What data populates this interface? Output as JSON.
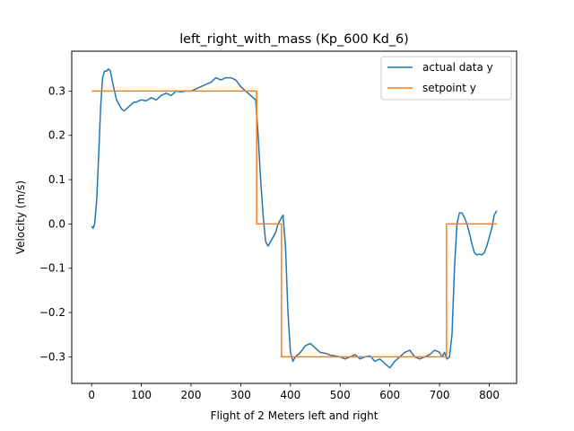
{
  "chart_data": {
    "type": "line",
    "title": "left_right_with_mass (Kp_600 Kd_6)",
    "xlabel": "Flight of 2 Meters left and right",
    "ylabel": "Velocity (m/s)",
    "xlim": [
      -40,
      855
    ],
    "ylim": [
      -0.36,
      0.39
    ],
    "xticks": [
      0,
      100,
      200,
      300,
      400,
      500,
      600,
      700,
      800
    ],
    "yticks": [
      -0.3,
      -0.2,
      -0.1,
      0.0,
      0.1,
      0.2,
      0.3
    ],
    "xtick_labels": [
      "0",
      "100",
      "200",
      "300",
      "400",
      "500",
      "600",
      "700",
      "800"
    ],
    "ytick_labels": [
      "−0.3",
      "−0.2",
      "−0.1",
      "0.0",
      "0.1",
      "0.2",
      "0.3"
    ],
    "grid": false,
    "legend_position": "upper right",
    "series": [
      {
        "name": "actual data y",
        "color": "#1f77b4",
        "x": [
          0,
          3,
          6,
          10,
          14,
          18,
          22,
          26,
          30,
          34,
          38,
          42,
          46,
          50,
          55,
          60,
          65,
          70,
          75,
          80,
          85,
          90,
          95,
          100,
          110,
          120,
          130,
          140,
          150,
          160,
          170,
          180,
          190,
          200,
          210,
          220,
          230,
          240,
          250,
          260,
          270,
          280,
          290,
          300,
          310,
          320,
          325,
          330,
          335,
          340,
          345,
          350,
          355,
          360,
          365,
          370,
          375,
          380,
          385,
          390,
          395,
          400,
          405,
          410,
          415,
          420,
          430,
          440,
          450,
          460,
          470,
          480,
          490,
          500,
          510,
          520,
          530,
          540,
          550,
          560,
          570,
          580,
          590,
          600,
          610,
          620,
          630,
          640,
          650,
          660,
          670,
          680,
          690,
          700,
          705,
          710,
          715,
          720,
          725,
          730,
          735,
          740,
          745,
          750,
          755,
          760,
          765,
          770,
          775,
          780,
          785,
          790,
          795,
          800,
          805,
          810,
          815
        ],
        "y": [
          -0.005,
          -0.01,
          0.0,
          0.05,
          0.15,
          0.26,
          0.33,
          0.345,
          0.345,
          0.35,
          0.345,
          0.32,
          0.3,
          0.28,
          0.27,
          0.26,
          0.255,
          0.26,
          0.265,
          0.27,
          0.275,
          0.275,
          0.278,
          0.28,
          0.278,
          0.285,
          0.28,
          0.29,
          0.295,
          0.29,
          0.3,
          0.298,
          0.3,
          0.3,
          0.305,
          0.31,
          0.315,
          0.32,
          0.33,
          0.325,
          0.33,
          0.33,
          0.325,
          0.31,
          0.3,
          0.29,
          0.285,
          0.28,
          0.2,
          0.1,
          0.02,
          -0.04,
          -0.05,
          -0.04,
          -0.03,
          -0.02,
          0.0,
          0.01,
          0.02,
          -0.05,
          -0.2,
          -0.29,
          -0.31,
          -0.3,
          -0.295,
          -0.29,
          -0.275,
          -0.27,
          -0.28,
          -0.29,
          -0.292,
          -0.296,
          -0.298,
          -0.3,
          -0.305,
          -0.3,
          -0.295,
          -0.305,
          -0.3,
          -0.298,
          -0.31,
          -0.305,
          -0.315,
          -0.325,
          -0.31,
          -0.3,
          -0.29,
          -0.285,
          -0.3,
          -0.305,
          -0.3,
          -0.295,
          -0.285,
          -0.29,
          -0.3,
          -0.29,
          -0.305,
          -0.3,
          -0.25,
          -0.1,
          0.0,
          0.025,
          0.025,
          0.015,
          0.0,
          -0.02,
          -0.045,
          -0.065,
          -0.07,
          -0.068,
          -0.07,
          -0.065,
          -0.05,
          -0.03,
          -0.01,
          0.02,
          0.03
        ]
      },
      {
        "name": "setpoint y",
        "color": "#ff7f0e",
        "x": [
          0,
          332,
          332,
          382,
          382,
          714,
          714,
          815
        ],
        "y": [
          0.3,
          0.3,
          0.0,
          0.0,
          -0.3,
          -0.3,
          0.0,
          0.0
        ]
      }
    ]
  }
}
